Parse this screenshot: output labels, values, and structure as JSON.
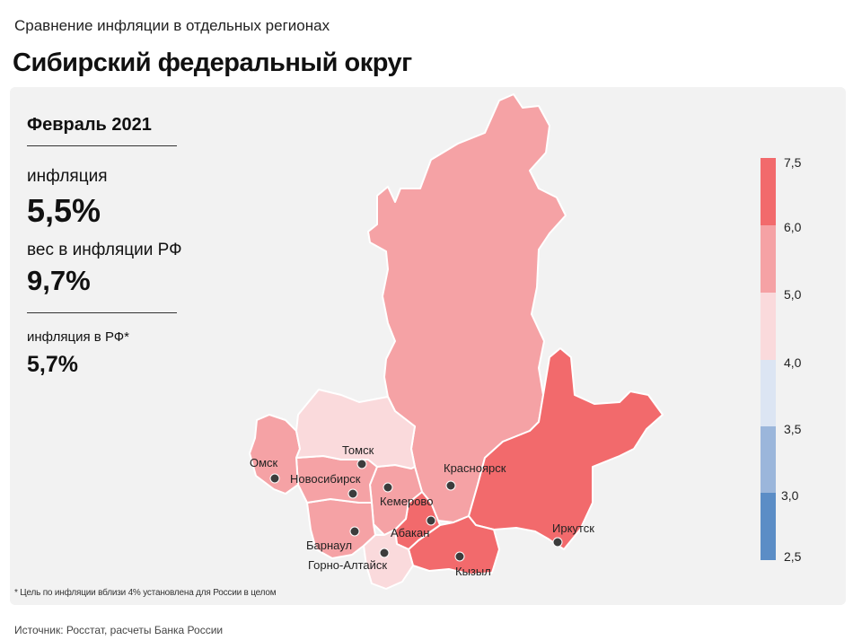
{
  "header": {
    "subtitle": "Сравнение инфляции  в отдельных регионах",
    "title": "Сибирский федеральный округ"
  },
  "info": {
    "period": "Февраль 2021",
    "inflation_label": "инфляция",
    "inflation_value": "5,5%",
    "weight_label": "вес в инфляции  РФ",
    "weight_value": "9,7%",
    "rf_label": "инфляция  в РФ*",
    "rf_value": "5,7%"
  },
  "footnote": "* Цель по инфляции вблизи 4% установлена для России в целом",
  "source": "Источник: Росстат, расчеты Банка России",
  "colors": {
    "c75": "#f26a6c",
    "c60": "#f5a2a5",
    "c50": "#fadadc",
    "c40": "#dce5f3",
    "c35": "#9bb6db",
    "c30": "#5b8dc6",
    "panel": "#f2f2f2",
    "dot": "#3c3c3c"
  },
  "scale": {
    "ticks": [
      "7,5",
      "6,0",
      "5,0",
      "4,0",
      "3,5",
      "3,0",
      "2,5"
    ]
  },
  "cities": [
    {
      "name": "Омск"
    },
    {
      "name": "Томск"
    },
    {
      "name": "Новосибирск"
    },
    {
      "name": "Кемерово"
    },
    {
      "name": "Красноярск"
    },
    {
      "name": "Абакан"
    },
    {
      "name": "Барнаул"
    },
    {
      "name": "Горно-Алтайск"
    },
    {
      "name": "Кызыл"
    },
    {
      "name": "Иркутск"
    }
  ]
}
